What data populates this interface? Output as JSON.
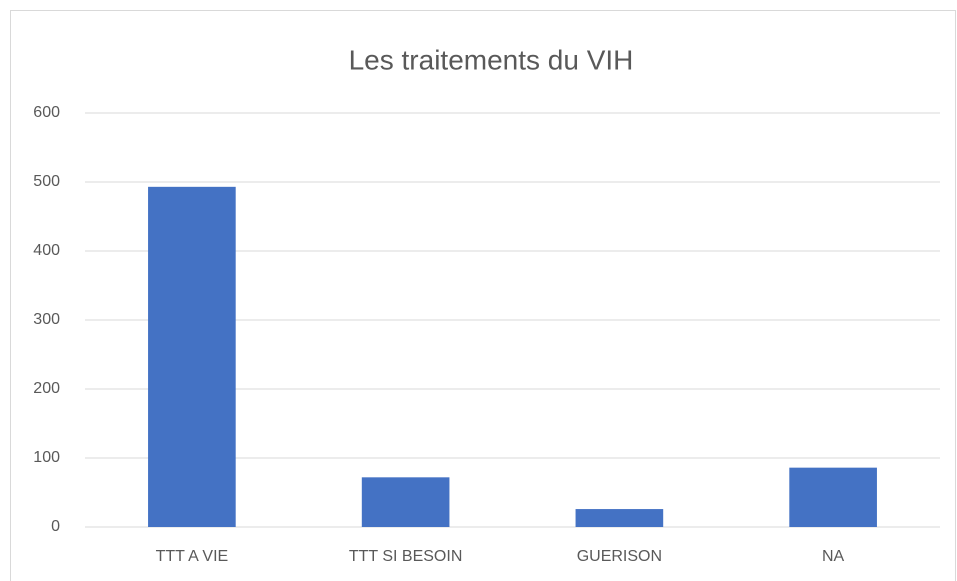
{
  "chart_data": {
    "type": "bar",
    "title": "Les traitements du VIH",
    "categories": [
      "TTT A VIE",
      "TTT SI BESOIN",
      "GUERISON",
      "NA"
    ],
    "values": [
      493,
      72,
      26,
      86
    ],
    "color": "#4472c4",
    "ylim": [
      0,
      600
    ],
    "yticks": [
      0,
      100,
      200,
      300,
      400,
      500,
      600
    ],
    "grid": true
  }
}
